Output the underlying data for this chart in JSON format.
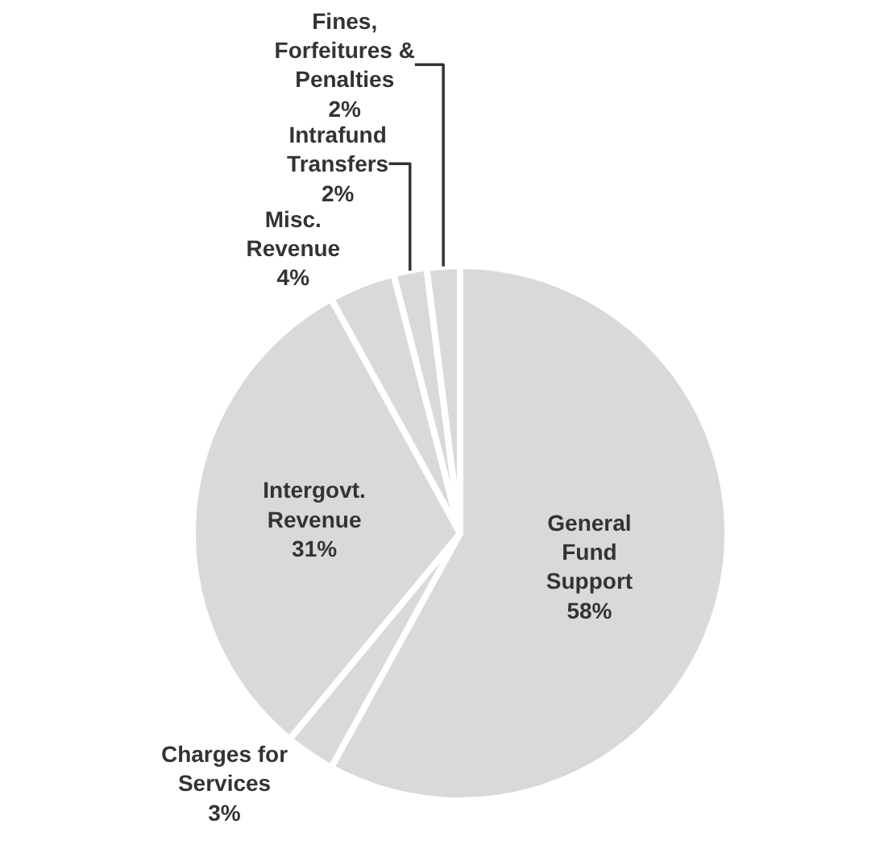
{
  "chart_data": {
    "type": "pie",
    "categories": [
      "General\nFund\nSupport",
      "Charges for\nServices",
      "Intergovt.\nRevenue",
      "Misc.\nRevenue",
      "Intrafund\nTransfers",
      "Fines,\nForfeitures &\nPenalties"
    ],
    "values": [
      58,
      3,
      31,
      4,
      2,
      2
    ],
    "value_labels": [
      "58%",
      "3%",
      "31%",
      "4%",
      "2%",
      "2%"
    ],
    "colors": [
      "#d9d9d9",
      "#d9d9d9",
      "#d9d9d9",
      "#d9d9d9",
      "#d9d9d9",
      "#d9d9d9"
    ],
    "legend": false
  }
}
